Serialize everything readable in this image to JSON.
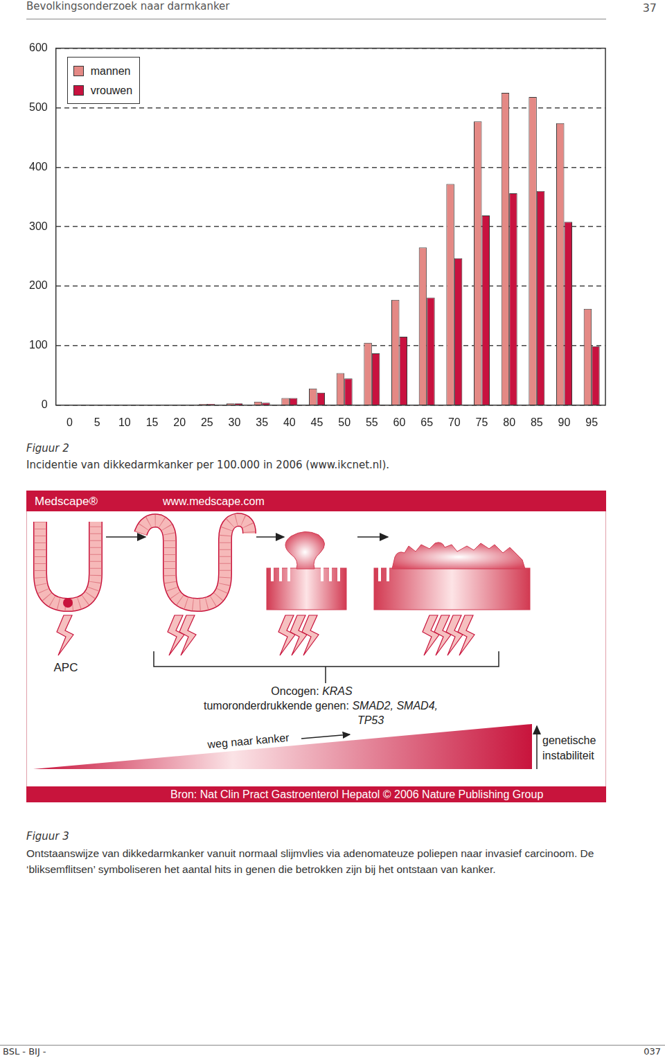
{
  "header": {
    "title": "Bevolkingsonderzoek naar darmkanker",
    "page": "37"
  },
  "chart_data": {
    "type": "bar",
    "categories": [
      "0",
      "5",
      "10",
      "15",
      "20",
      "25",
      "30",
      "35",
      "40",
      "45",
      "50",
      "55",
      "60",
      "65",
      "70",
      "75",
      "80",
      "85",
      "90",
      "95"
    ],
    "series": [
      {
        "name": "mannen",
        "color": "#e48985",
        "values": [
          0,
          0,
          0,
          1,
          1,
          2,
          3,
          6,
          12,
          28,
          54,
          105,
          177,
          265,
          372,
          477,
          525,
          518,
          474,
          162
        ]
      },
      {
        "name": "vrouwen",
        "color": "#c8123f",
        "values": [
          0,
          0,
          0,
          1,
          1,
          2,
          3,
          4,
          12,
          21,
          45,
          87,
          115,
          181,
          247,
          319,
          356,
          360,
          308,
          99
        ]
      }
    ],
    "ylim": [
      0,
      600
    ],
    "yticks": [
      0,
      100,
      200,
      300,
      400,
      500,
      600
    ],
    "grid": true,
    "legend": "upper left"
  },
  "figure2": {
    "label": "Figuur 2",
    "caption": "Incidentie van dikkedarmkanker per 100.000 in 2006 (www.ikcnet.nl)."
  },
  "diagram": {
    "header_left": "Medscape®",
    "header_right": "www.medscape.com",
    "stages": [
      {
        "hits": 1
      },
      {
        "hits": 2
      },
      {
        "hits": 3
      },
      {
        "hits": 4
      }
    ],
    "first_gene": "APC",
    "oncogene_label": "Oncogen:",
    "oncogene": "KRAS",
    "suppressor_label": "tumoronderdrukkende genen:",
    "suppressor_line1": "SMAD2, SMAD4,",
    "suppressor_line2": "TP53",
    "path_label": "weg naar kanker",
    "instability_label": [
      "genetische",
      "instabiliteit"
    ],
    "source": "Bron: Nat Clin Pract Gastroenterol Hepatol © 2006 Nature Publishing Group"
  },
  "figure3": {
    "label": "Figuur 3",
    "caption_lines": [
      "Ontstaanswijze van dikkedarmkanker vanuit normaal slijmvlies via adenomateuze poliepen naar invasief carcinoom. De",
      "‘bliksemflitsen’ symboliseren het aantal hits in genen die betrokken zijn bij het ontstaan van kanker."
    ]
  },
  "footer": {
    "left": "BSL - BIJ -",
    "page": "037"
  }
}
